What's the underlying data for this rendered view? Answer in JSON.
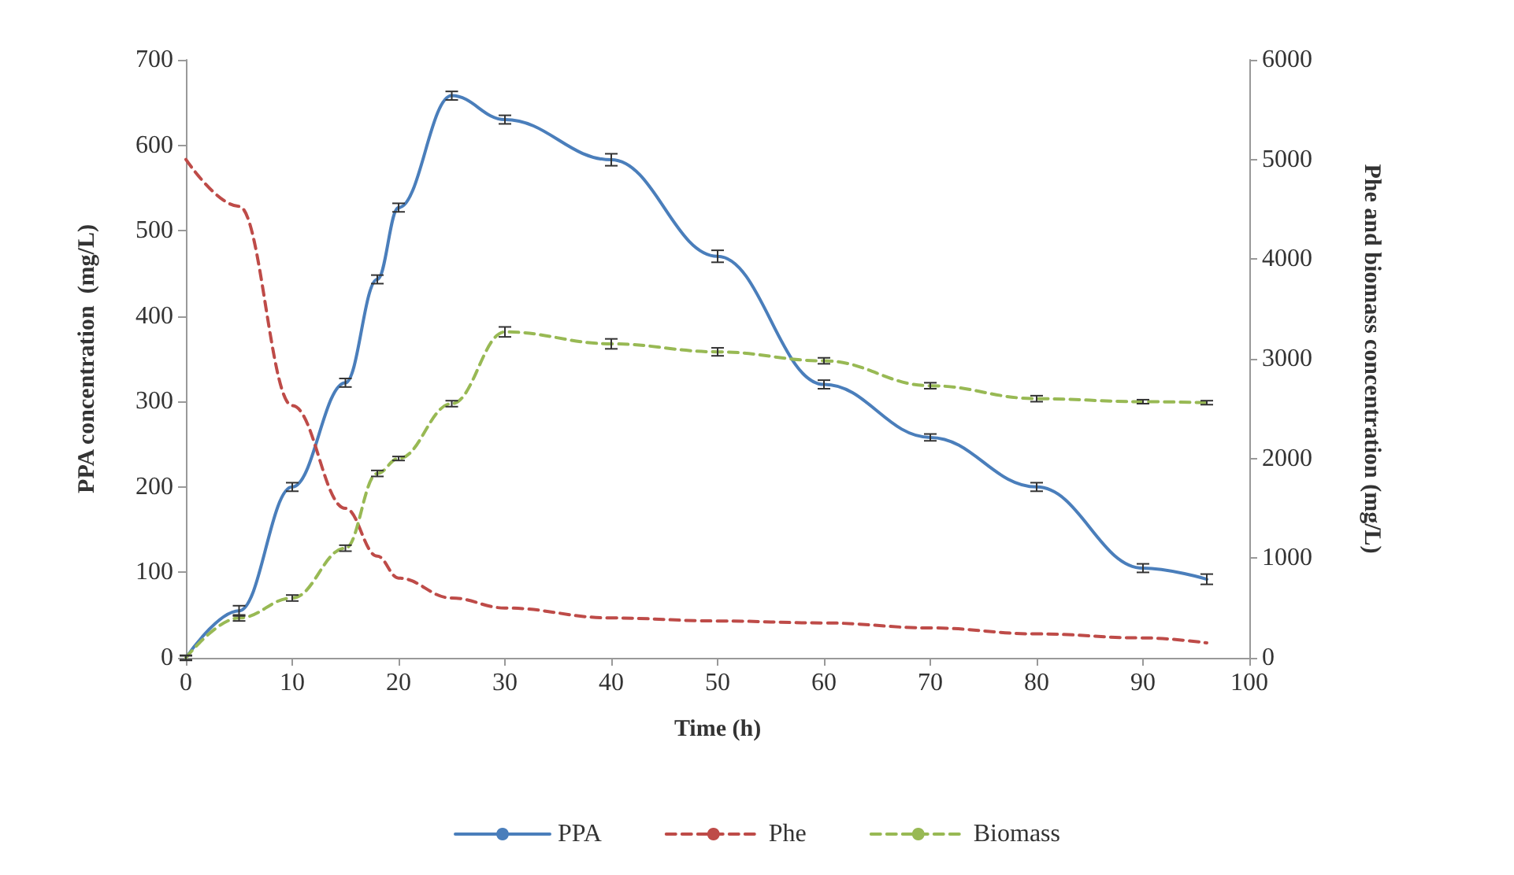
{
  "chart_data": {
    "type": "line",
    "x": [
      0,
      5,
      10,
      15,
      18,
      20,
      25,
      30,
      40,
      50,
      60,
      70,
      80,
      90,
      96
    ],
    "series": [
      {
        "name": "PPA",
        "color": "#4a7ebb",
        "line_style": "solid",
        "values": [
          0,
          55,
          200,
          322,
          443,
          527,
          658,
          630,
          583,
          470,
          320,
          258,
          200,
          105,
          92
        ],
        "errors": [
          3,
          6,
          5,
          5,
          5,
          5,
          5,
          5,
          7,
          7,
          5,
          4,
          5,
          5,
          6
        ]
      },
      {
        "name": "Phe",
        "color": "#be4b48",
        "axis": "y2",
        "line_style": "dashed",
        "values": [
          5000,
          4530,
          2530,
          1500,
          1020,
          800,
          600,
          500,
          400,
          370,
          350,
          300,
          240,
          200,
          150
        ]
      },
      {
        "name": "Biomass",
        "color": "#98b954",
        "axis": "y2",
        "line_style": "dashed",
        "values": [
          0,
          400,
          600,
          1100,
          1850,
          2000,
          2550,
          3270,
          3150,
          3070,
          2980,
          2730,
          2600,
          2570,
          2560
        ],
        "errors": [
          20,
          30,
          30,
          30,
          30,
          20,
          30,
          50,
          50,
          40,
          30,
          30,
          30,
          20,
          20
        ]
      }
    ],
    "xlabel": "Time (h)",
    "ylabel": "PPA concentration  (mg/L)",
    "y2label": "Phe and biomass concentration (mg/L)",
    "xlim": [
      0,
      100
    ],
    "xticks": [
      0,
      10,
      20,
      30,
      40,
      50,
      60,
      70,
      80,
      90,
      100
    ],
    "ylim": [
      0,
      700
    ],
    "yticks": [
      0,
      100,
      200,
      300,
      400,
      500,
      600,
      700
    ],
    "y2lim": [
      0,
      6000
    ],
    "y2ticks": [
      0,
      1000,
      2000,
      3000,
      4000,
      5000,
      6000
    ],
    "grid": false,
    "legend": "bottom",
    "marker": "none"
  }
}
